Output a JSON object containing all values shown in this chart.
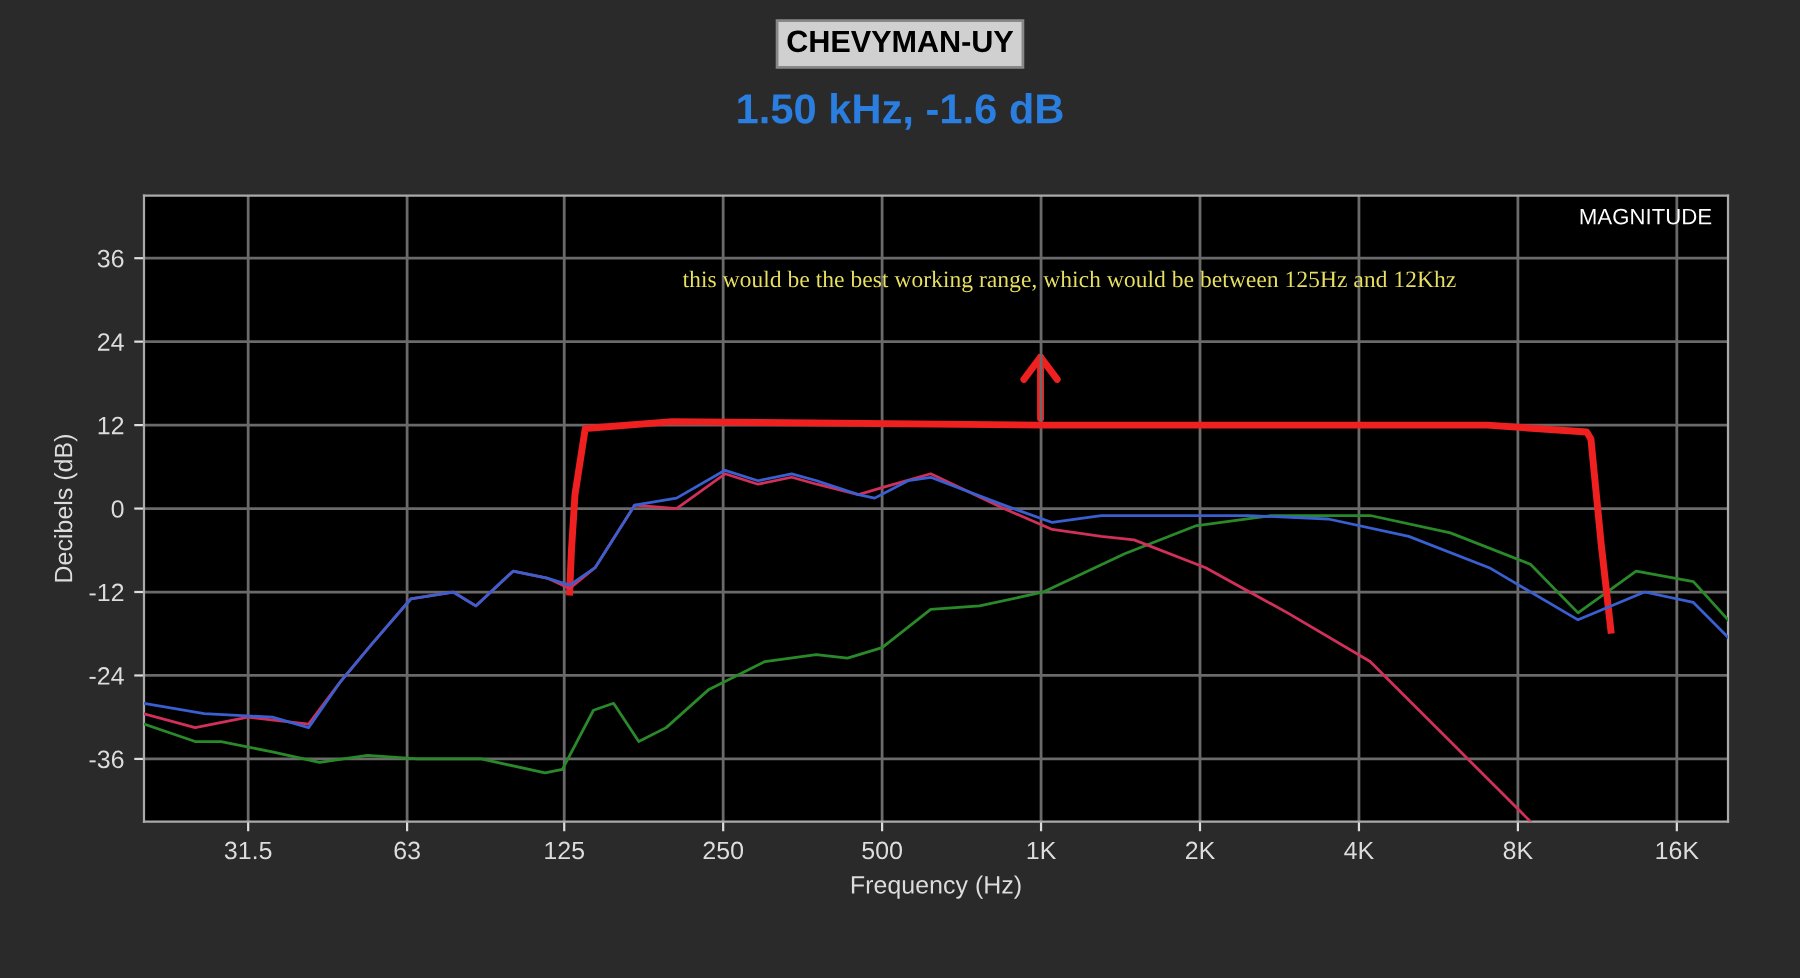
{
  "chart_data": {
    "type": "line",
    "title": "CHEVYMAN-UY",
    "subtitle": "1.50 kHz, -1.6 dB",
    "xlabel": "Frequency (Hz)",
    "ylabel": "Decibels (dB)",
    "annotations": [
      "MAGNITUDE",
      "this would be the best working range, which would be between 125Hz and 12Khz"
    ],
    "log": "x",
    "xlim": [
      20,
      20000
    ],
    "xticks": [
      31.5,
      63,
      125,
      250,
      500,
      {
        "value": 1000,
        "label": "1K"
      },
      {
        "value": 2000,
        "label": "2K"
      },
      {
        "value": 4000,
        "label": "4K"
      },
      {
        "value": 8000,
        "label": "8K"
      },
      {
        "value": 16000,
        "label": "16K"
      }
    ],
    "ylim": [
      -45,
      45
    ],
    "yticks": [
      -36,
      -24,
      -12,
      0,
      12,
      24,
      36
    ],
    "grid": true,
    "series": [
      {
        "color": "#3a5fd0",
        "x": [
          20,
          26,
          35,
          41,
          47,
          54,
          64,
          77,
          85,
          100,
          116,
          128,
          143,
          170,
          204,
          252,
          291,
          337,
          376,
          451,
          484,
          560,
          618,
          850,
          1050,
          1300,
          1730,
          2470,
          3500,
          4970,
          7060,
          10400,
          13900,
          17200,
          20000
        ],
        "values": [
          -28,
          -29.5,
          -30,
          -31.5,
          -25,
          -19.5,
          -13,
          -12,
          -14,
          -9,
          -10,
          -11,
          -8.5,
          0.5,
          1.5,
          5.5,
          4,
          5,
          4,
          2,
          1.5,
          4,
          4.5,
          0.5,
          -2,
          -1,
          -1,
          -1,
          -1.5,
          -4,
          -8.5,
          -16,
          -12,
          -13.5,
          -18.5
        ]
      },
      {
        "color": "#d0305a",
        "x": [
          20,
          25,
          31.5,
          41,
          47,
          54,
          64,
          77,
          85,
          100,
          116,
          128,
          143,
          170,
          204,
          252,
          291,
          337,
          376,
          451,
          500,
          618,
          850,
          1050,
          1300,
          1500,
          2050,
          2930,
          4200,
          5960,
          8450
        ],
        "values": [
          -29.5,
          -31.5,
          -30,
          -31,
          -25,
          -19.5,
          -13,
          -12,
          -14,
          -9,
          -10,
          -11.5,
          -8.5,
          0.5,
          0,
          5,
          3.5,
          4.5,
          3.5,
          2,
          3,
          5,
          0,
          -3,
          -4,
          -4.5,
          -8.5,
          -15,
          -22,
          -33.5,
          -45
        ]
      },
      {
        "color": "#ee2020",
        "x": [
          128,
          129,
          131,
          137,
          200,
          1000,
          7000,
          10800,
          11000,
          11500,
          12000
        ],
        "values": [
          -12,
          -6,
          2,
          11.5,
          12.5,
          12,
          12,
          11,
          10,
          -5,
          -17.5
        ]
      },
      {
        "color": "#2a8a2a",
        "x": [
          20,
          25,
          28,
          35,
          43,
          53,
          66,
          87,
          115,
          124,
          142,
          155,
          173,
          195,
          235,
          300,
          375,
          430,
          500,
          618,
          765,
          1010,
          1440,
          1960,
          2730,
          4200,
          5960,
          8450,
          10400,
          13400,
          17200,
          20000
        ],
        "values": [
          -31,
          -33.5,
          -33.5,
          -35,
          -36.5,
          -35.5,
          -36,
          -36,
          -38,
          -37.5,
          -29,
          -28,
          -33.5,
          -31.5,
          -26,
          -22,
          -21,
          -21.5,
          -20,
          -14.5,
          -14,
          -12,
          -6.5,
          -2.5,
          -1,
          -1,
          -3.5,
          -8,
          -15,
          -9,
          -10.5,
          -16
        ]
      }
    ]
  }
}
